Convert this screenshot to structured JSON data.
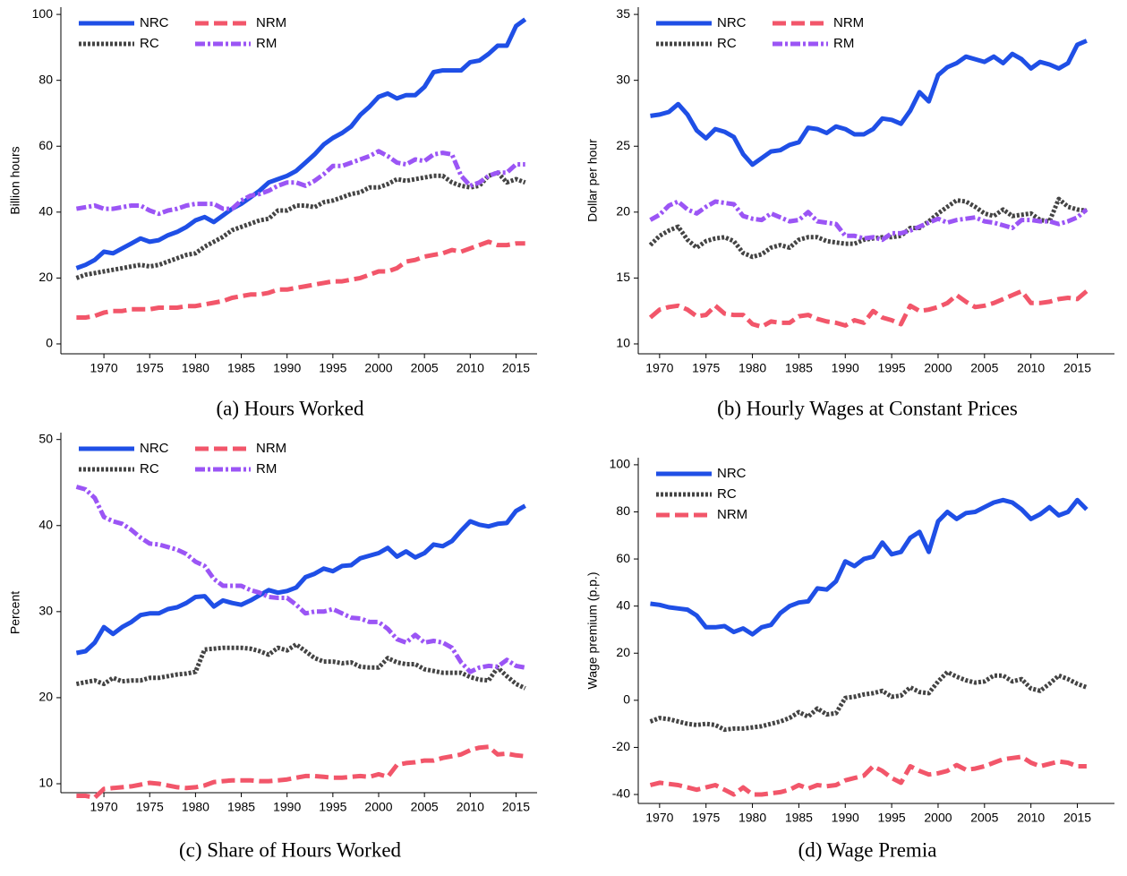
{
  "chart_data": [
    {
      "type": "line",
      "caption": "(a) Hours Worked",
      "ylabel": "Billion hours",
      "x": [
        1967,
        1968,
        1969,
        1970,
        1971,
        1972,
        1973,
        1974,
        1975,
        1976,
        1977,
        1978,
        1979,
        1980,
        1981,
        1982,
        1983,
        1984,
        1985,
        1986,
        1987,
        1988,
        1989,
        1990,
        1991,
        1992,
        1993,
        1994,
        1995,
        1996,
        1997,
        1998,
        1999,
        2000,
        2001,
        2002,
        2003,
        2004,
        2005,
        2006,
        2007,
        2008,
        2009,
        2010,
        2011,
        2012,
        2013,
        2014,
        2015,
        2016
      ],
      "series": [
        {
          "name": "NRC",
          "color": "#1f4fe6",
          "dash": "solid",
          "values": [
            23,
            24,
            25.5,
            28,
            27.5,
            29,
            30.5,
            32,
            31,
            31.5,
            33,
            34,
            35.5,
            37.5,
            38.5,
            37,
            39,
            41,
            42.5,
            44.5,
            46.5,
            49,
            50,
            51,
            52.5,
            55,
            57.5,
            60.5,
            62.5,
            64,
            66,
            69.5,
            72,
            75,
            76,
            74.5,
            75.5,
            75.5,
            78,
            82.5,
            83,
            83,
            83,
            85.5,
            86,
            88,
            90.5,
            90.5,
            96.5,
            98.5
          ]
        },
        {
          "name": "RC",
          "color": "#444444",
          "dash": "dotted",
          "values": [
            20,
            21,
            21.5,
            22,
            22.5,
            23,
            23.5,
            24,
            23.5,
            24,
            25,
            26,
            27,
            27.5,
            29.5,
            31,
            32.5,
            34.5,
            35.5,
            36.5,
            37.5,
            38,
            40.5,
            40.5,
            42,
            42,
            41.5,
            43,
            43.5,
            44.5,
            45.5,
            46,
            47.5,
            47.5,
            48.5,
            50,
            49.5,
            50,
            50.5,
            51,
            51,
            49,
            48,
            47.5,
            48,
            51,
            52,
            49,
            50,
            49
          ]
        },
        {
          "name": "NRM",
          "color": "#f2566a",
          "dash": "dashed",
          "values": [
            8,
            8,
            8.5,
            9.5,
            10,
            10,
            10.5,
            10.5,
            10.5,
            11,
            11,
            11,
            11.5,
            11.5,
            12,
            12.5,
            13,
            14,
            14.5,
            15,
            15,
            15.5,
            16.5,
            16.5,
            17,
            17.5,
            18,
            18.5,
            19,
            19,
            19.5,
            20,
            21,
            22,
            22,
            23,
            25,
            25.5,
            26.5,
            27,
            27.5,
            28.5,
            28,
            29,
            30,
            31,
            30,
            30,
            30.5,
            30.5
          ]
        },
        {
          "name": "RM",
          "color": "#9b55f5",
          "dash": "dashdot",
          "values": [
            41,
            41.5,
            42,
            41,
            41,
            41.5,
            42,
            42,
            40.5,
            39.5,
            40.5,
            41,
            42,
            42.5,
            42.5,
            42.5,
            41,
            41,
            43.5,
            45,
            45.5,
            46.5,
            48,
            49,
            49,
            48,
            49.5,
            51.5,
            54,
            54,
            55,
            56,
            57,
            58.5,
            57,
            55,
            54.5,
            56,
            55.5,
            57.5,
            58,
            57.5,
            51,
            48,
            49,
            51,
            52,
            52,
            54.5,
            54.5
          ]
        }
      ],
      "xlim": [
        1965.3,
        2017.3
      ],
      "xticks": [
        1970,
        1975,
        1980,
        1985,
        1990,
        1995,
        2000,
        2005,
        2010,
        2015
      ],
      "ylim": [
        -3,
        102.2
      ],
      "yticks": [
        0,
        20,
        40,
        60,
        80,
        100
      ],
      "legend": "upper left",
      "legend_columns": 2
    },
    {
      "type": "line",
      "caption": "(b) Hourly Wages at Constant Prices",
      "ylabel": "Dollar per hour",
      "x": [
        1969,
        1970,
        1971,
        1972,
        1973,
        1974,
        1975,
        1976,
        1977,
        1978,
        1979,
        1980,
        1981,
        1982,
        1983,
        1984,
        1985,
        1986,
        1987,
        1988,
        1989,
        1990,
        1991,
        1992,
        1993,
        1994,
        1995,
        1996,
        1997,
        1998,
        1999,
        2000,
        2001,
        2002,
        2003,
        2004,
        2005,
        2006,
        2007,
        2008,
        2009,
        2010,
        2011,
        2012,
        2013,
        2014,
        2015,
        2016
      ],
      "series": [
        {
          "name": "NRC",
          "color": "#1f4fe6",
          "dash": "solid",
          "values": [
            27.3,
            27.4,
            27.6,
            28.2,
            27.4,
            26.2,
            25.6,
            26.3,
            26.1,
            25.7,
            24.4,
            23.6,
            24.1,
            24.6,
            24.7,
            25.1,
            25.3,
            26.4,
            26.3,
            26.0,
            26.5,
            26.3,
            25.9,
            25.9,
            26.3,
            27.1,
            27.0,
            26.7,
            27.7,
            29.1,
            28.4,
            30.4,
            31.0,
            31.3,
            31.8,
            31.6,
            31.4,
            31.8,
            31.3,
            32.0,
            31.6,
            30.9,
            31.4,
            31.2,
            30.9,
            31.3,
            32.7,
            33.0
          ]
        },
        {
          "name": "RC",
          "color": "#444444",
          "dash": "dotted",
          "values": [
            17.5,
            18.2,
            18.6,
            18.9,
            17.9,
            17.3,
            17.8,
            18.0,
            18.1,
            17.8,
            16.9,
            16.6,
            16.8,
            17.3,
            17.5,
            17.3,
            17.9,
            18.1,
            18.1,
            17.8,
            17.7,
            17.6,
            17.6,
            17.9,
            18.0,
            18.1,
            18.1,
            18.2,
            18.8,
            18.8,
            19.3,
            19.9,
            20.4,
            20.9,
            20.8,
            20.4,
            19.9,
            19.7,
            20.2,
            19.7,
            19.8,
            19.9,
            19.4,
            19.3,
            21.0,
            20.4,
            20.2,
            20.1
          ]
        },
        {
          "name": "NRM",
          "color": "#f2566a",
          "dash": "dashed",
          "values": [
            12.0,
            12.6,
            12.8,
            12.9,
            12.6,
            12.1,
            12.2,
            12.9,
            12.3,
            12.2,
            12.2,
            11.5,
            11.3,
            11.7,
            11.6,
            11.6,
            12.1,
            12.2,
            11.9,
            11.7,
            11.6,
            11.4,
            11.8,
            11.6,
            12.5,
            12.0,
            11.8,
            11.5,
            12.9,
            12.5,
            12.6,
            12.8,
            13.1,
            13.7,
            13.2,
            12.8,
            12.9,
            13.1,
            13.4,
            13.7,
            14.0,
            13.1,
            13.1,
            13.2,
            13.4,
            13.5,
            13.4,
            14.0
          ]
        },
        {
          "name": "RM",
          "color": "#9b55f5",
          "dash": "dashdot",
          "values": [
            19.4,
            19.8,
            20.5,
            20.8,
            20.2,
            19.9,
            20.4,
            20.8,
            20.7,
            20.6,
            19.7,
            19.5,
            19.4,
            19.9,
            19.6,
            19.3,
            19.4,
            20.0,
            19.3,
            19.2,
            19.1,
            18.2,
            18.2,
            18.0,
            18.1,
            17.9,
            18.4,
            18.4,
            18.6,
            18.9,
            19.2,
            19.5,
            19.2,
            19.4,
            19.5,
            19.6,
            19.3,
            19.2,
            19.0,
            18.8,
            19.4,
            19.4,
            19.3,
            19.3,
            19.1,
            19.3,
            19.6,
            20.2
          ]
        }
      ],
      "xlim": [
        1967.7,
        2019
      ],
      "xticks": [
        1970,
        1975,
        1980,
        1985,
        1990,
        1995,
        2000,
        2005,
        2010,
        2015
      ],
      "ylim": [
        9.25,
        35.55
      ],
      "yticks": [
        10,
        15,
        20,
        25,
        30,
        35
      ],
      "legend": "upper left",
      "legend_columns": 2
    },
    {
      "type": "line",
      "caption": "(c) Share of Hours Worked",
      "ylabel": "Percent",
      "x": [
        1967,
        1968,
        1969,
        1970,
        1971,
        1972,
        1973,
        1974,
        1975,
        1976,
        1977,
        1978,
        1979,
        1980,
        1981,
        1982,
        1983,
        1984,
        1985,
        1986,
        1987,
        1988,
        1989,
        1990,
        1991,
        1992,
        1993,
        1994,
        1995,
        1996,
        1997,
        1998,
        1999,
        2000,
        2001,
        2002,
        2003,
        2004,
        2005,
        2006,
        2007,
        2008,
        2009,
        2010,
        2011,
        2012,
        2013,
        2014,
        2015,
        2016
      ],
      "series": [
        {
          "name": "NRC",
          "color": "#1f4fe6",
          "dash": "solid",
          "values": [
            25.2,
            25.4,
            26.4,
            28.2,
            27.4,
            28.2,
            28.8,
            29.6,
            29.8,
            29.8,
            30.3,
            30.5,
            31,
            31.7,
            31.8,
            30.6,
            31.3,
            31,
            30.8,
            31.3,
            31.9,
            32.5,
            32.2,
            32.4,
            32.8,
            34,
            34.4,
            35,
            34.7,
            35.3,
            35.4,
            36.2,
            36.5,
            36.8,
            37.4,
            36.4,
            37,
            36.3,
            36.8,
            37.8,
            37.6,
            38.2,
            39.4,
            40.5,
            40.1,
            39.9,
            40.2,
            40.3,
            41.7,
            42.3
          ]
        },
        {
          "name": "RC",
          "color": "#444444",
          "dash": "dotted",
          "values": [
            21.6,
            21.8,
            22,
            21.6,
            22.3,
            21.9,
            22,
            22,
            22.3,
            22.3,
            22.5,
            22.7,
            22.8,
            23,
            25.6,
            25.7,
            25.8,
            25.8,
            25.8,
            25.7,
            25.4,
            25,
            25.8,
            25.5,
            26.2,
            25.4,
            24.6,
            24.2,
            24.2,
            24,
            24.1,
            23.6,
            23.5,
            23.5,
            24.6,
            24.1,
            23.9,
            23.9,
            23.3,
            23.1,
            22.9,
            22.9,
            22.9,
            22.4,
            22.1,
            22,
            23.5,
            22.5,
            21.6,
            21.1
          ]
        },
        {
          "name": "NRM",
          "color": "#f2566a",
          "dash": "dashed",
          "values": [
            8.6,
            8.6,
            8.4,
            9.4,
            9.5,
            9.6,
            9.7,
            9.9,
            10.1,
            10,
            9.8,
            9.6,
            9.5,
            9.6,
            9.8,
            10.2,
            10.3,
            10.4,
            10.4,
            10.4,
            10.3,
            10.3,
            10.4,
            10.5,
            10.7,
            10.9,
            10.9,
            10.8,
            10.7,
            10.7,
            10.8,
            10.9,
            10.8,
            11.1,
            10.8,
            12.2,
            12.4,
            12.5,
            12.7,
            12.7,
            13,
            13.2,
            13.4,
            13.9,
            14.2,
            14.3,
            13.4,
            13.5,
            13.3,
            13.2
          ]
        },
        {
          "name": "RM",
          "color": "#9b55f5",
          "dash": "dashdot",
          "values": [
            44.5,
            44.2,
            43.2,
            41,
            40.5,
            40.2,
            39.5,
            38.6,
            37.9,
            37.8,
            37.5,
            37.2,
            36.7,
            35.8,
            35.3,
            33.8,
            33,
            33,
            33,
            32.5,
            32.2,
            31.7,
            31.6,
            31.6,
            30.8,
            29.8,
            30,
            30,
            30.3,
            29.8,
            29.3,
            29.2,
            28.8,
            28.8,
            28,
            26.8,
            26.4,
            27.3,
            26.4,
            26.6,
            26.4,
            25.8,
            24.1,
            23,
            23.5,
            23.7,
            23.6,
            24.4,
            23.7,
            23.5
          ]
        }
      ],
      "xlim": [
        1965.3,
        2017.3
      ],
      "xticks": [
        1970,
        1975,
        1980,
        1985,
        1990,
        1995,
        2000,
        2005,
        2010,
        2015
      ],
      "ylim": [
        8.96,
        50.8
      ],
      "yticks": [
        10,
        20,
        30,
        40,
        50
      ],
      "legend": "upper left",
      "legend_columns": 2
    },
    {
      "type": "line",
      "caption": "(d) Wage Premia",
      "ylabel": "Wage premium (p.p.)",
      "x": [
        1969,
        1970,
        1971,
        1972,
        1973,
        1974,
        1975,
        1976,
        1977,
        1978,
        1979,
        1980,
        1981,
        1982,
        1983,
        1984,
        1985,
        1986,
        1987,
        1988,
        1989,
        1990,
        1991,
        1992,
        1993,
        1994,
        1995,
        1996,
        1997,
        1998,
        1999,
        2000,
        2001,
        2002,
        2003,
        2004,
        2005,
        2006,
        2007,
        2008,
        2009,
        2010,
        2011,
        2012,
        2013,
        2014,
        2015,
        2016
      ],
      "series": [
        {
          "name": "NRC",
          "color": "#1f4fe6",
          "dash": "solid",
          "values": [
            41,
            40.5,
            39.5,
            39,
            38.5,
            36,
            31,
            31,
            31.5,
            29,
            30.5,
            28,
            31,
            32,
            37,
            40,
            41.5,
            42,
            47.5,
            47,
            50.5,
            59,
            57,
            60,
            61,
            67,
            62,
            63,
            69,
            71.5,
            63,
            76,
            80,
            77,
            79.5,
            80,
            82,
            84,
            85,
            84,
            81,
            77,
            79,
            82,
            78.5,
            80,
            85,
            81
          ]
        },
        {
          "name": "RC",
          "color": "#444444",
          "dash": "dotted",
          "values": [
            -9,
            -7.5,
            -8,
            -9,
            -10,
            -10.5,
            -10,
            -10.5,
            -12.5,
            -12,
            -12,
            -11.5,
            -11,
            -10,
            -9,
            -7.5,
            -5,
            -7,
            -3.5,
            -6,
            -5.5,
            1,
            1.5,
            2.5,
            3,
            4,
            1.5,
            2,
            5.5,
            3.5,
            3,
            8,
            12,
            10,
            8.5,
            7.5,
            8,
            10.5,
            10.5,
            8,
            9,
            5,
            4,
            7,
            10.5,
            9,
            7,
            5.5
          ]
        },
        {
          "name": "NRM",
          "color": "#f2566a",
          "dash": "dashed",
          "values": [
            -36,
            -35,
            -35.5,
            -36,
            -37,
            -38,
            -37,
            -36,
            -38,
            -40,
            -37,
            -40,
            -40,
            -39.5,
            -39,
            -38,
            -36,
            -37.5,
            -36,
            -36.5,
            -36,
            -34,
            -33,
            -32,
            -28,
            -30,
            -33,
            -35,
            -28,
            -30,
            -31.5,
            -31,
            -30,
            -27.5,
            -29.5,
            -29,
            -28,
            -26.5,
            -25,
            -24.5,
            -24,
            -26.5,
            -28,
            -27,
            -26,
            -26.5,
            -28,
            -28
          ]
        }
      ],
      "xlim": [
        1967.7,
        2019
      ],
      "xticks": [
        1970,
        1975,
        1980,
        1985,
        1990,
        1995,
        2000,
        2005,
        2010,
        2015
      ],
      "ylim": [
        -43.8,
        103
      ],
      "yticks": [
        -40,
        -20,
        0,
        20,
        40,
        60,
        80,
        100
      ],
      "legend": "upper left",
      "legend_columns": 1
    }
  ]
}
